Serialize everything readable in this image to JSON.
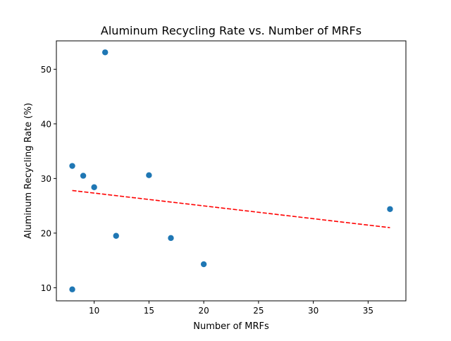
{
  "chart_data": {
    "type": "scatter",
    "title": "Aluminum Recycling Rate vs. Number of MRFs",
    "xlabel": "Number of MRFs",
    "ylabel": "Aluminum Recycling Rate (%)",
    "xlim": [
      6.55,
      38.45
    ],
    "ylim": [
      7.6,
      55.2
    ],
    "xticks": [
      10,
      15,
      20,
      25,
      30,
      35
    ],
    "yticks": [
      10,
      20,
      30,
      40,
      50
    ],
    "grid": false,
    "legend": "none",
    "series": [
      {
        "kind": "scatter",
        "color": "#1f77b4",
        "points": [
          {
            "x": 8,
            "y": 9.7
          },
          {
            "x": 8,
            "y": 32.3
          },
          {
            "x": 9,
            "y": 30.5
          },
          {
            "x": 10,
            "y": 28.4
          },
          {
            "x": 11,
            "y": 53.1
          },
          {
            "x": 12,
            "y": 19.5
          },
          {
            "x": 15,
            "y": 30.6
          },
          {
            "x": 17,
            "y": 19.1
          },
          {
            "x": 20,
            "y": 14.3
          },
          {
            "x": 37,
            "y": 24.4
          }
        ]
      },
      {
        "kind": "trendline",
        "color": "#ff0000",
        "style": "dashed",
        "x": [
          8,
          37
        ],
        "y": [
          27.8,
          21.0
        ]
      }
    ]
  }
}
